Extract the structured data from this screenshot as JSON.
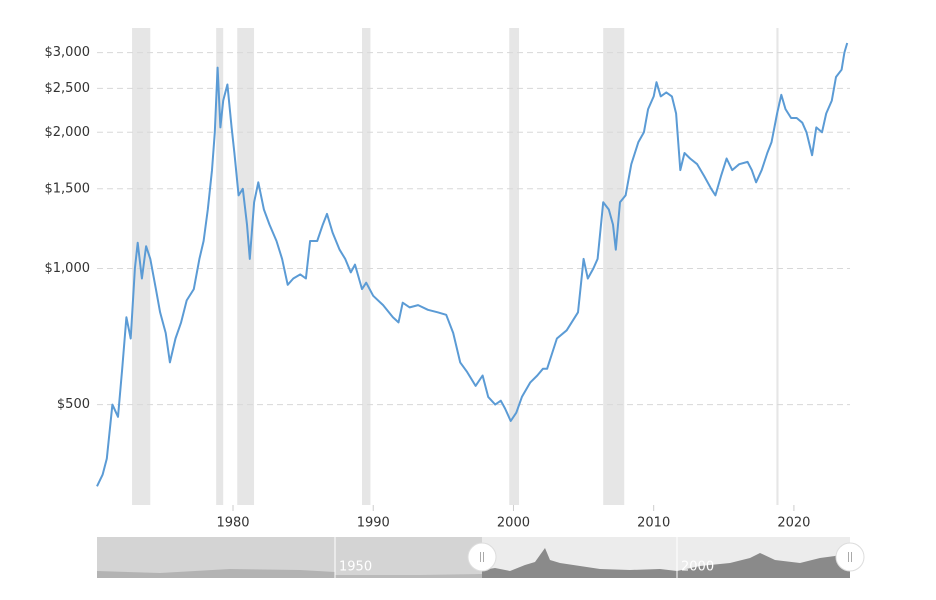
{
  "chart_data": {
    "type": "line",
    "log_scale": true,
    "grid": true,
    "color": "#5b9bd5",
    "recession_color": "#e6e6e6",
    "xlim": [
      1970.3,
      2024.0
    ],
    "ylim": [
      300,
      3400
    ],
    "xticks": [
      1980,
      1990,
      2000,
      2010,
      2020
    ],
    "yticks": [
      {
        "value": 500,
        "label": "$500"
      },
      {
        "value": 1000,
        "label": "$1,000"
      },
      {
        "value": 1500,
        "label": "$1,500"
      },
      {
        "value": 2000,
        "label": "$2,000"
      },
      {
        "value": 2500,
        "label": "$2,500"
      },
      {
        "value": 3000,
        "label": "$3,000"
      }
    ],
    "recessions": [
      [
        1972.8,
        1974.1
      ],
      [
        1978.8,
        1979.3
      ],
      [
        1980.3,
        1981.5
      ],
      [
        1989.2,
        1989.8
      ],
      [
        1999.7,
        2000.4
      ],
      [
        2006.4,
        2007.9
      ],
      [
        2018.75,
        2018.9
      ]
    ],
    "x": [
      1970.3,
      1970.7,
      1971.0,
      1971.4,
      1971.8,
      1972.1,
      1972.4,
      1972.7,
      1973.0,
      1973.2,
      1973.5,
      1973.8,
      1974.1,
      1974.5,
      1974.8,
      1975.2,
      1975.5,
      1975.9,
      1976.3,
      1976.7,
      1977.2,
      1977.6,
      1977.9,
      1978.2,
      1978.5,
      1978.7,
      1978.9,
      1979.1,
      1979.3,
      1979.6,
      1979.9,
      1980.1,
      1980.4,
      1980.7,
      1981.0,
      1981.2,
      1981.5,
      1981.8,
      1982.2,
      1982.6,
      1983.1,
      1983.5,
      1983.9,
      1984.3,
      1984.8,
      1985.2,
      1985.5,
      1986.0,
      1986.4,
      1986.7,
      1987.1,
      1987.6,
      1988.0,
      1988.4,
      1988.7,
      1989.2,
      1989.5,
      1990.0,
      1990.7,
      1991.4,
      1991.8,
      1992.1,
      1992.6,
      1993.2,
      1993.9,
      1994.6,
      1995.2,
      1995.7,
      1996.2,
      1996.7,
      1997.3,
      1997.8,
      1998.2,
      1998.7,
      1999.1,
      1999.4,
      1999.8,
      2000.2,
      2000.6,
      2001.2,
      2001.7,
      2002.1,
      2002.4,
      2003.1,
      2003.8,
      2004.6,
      2005.0,
      2005.3,
      2005.7,
      2006.0,
      2006.4,
      2006.8,
      2007.1,
      2007.3,
      2007.6,
      2008.0,
      2008.4,
      2008.9,
      2009.3,
      2009.6,
      2010.0,
      2010.2,
      2010.5,
      2010.9,
      2011.3,
      2011.6,
      2011.9,
      2012.2,
      2012.6,
      2013.1,
      2013.6,
      2014.1,
      2014.4,
      2014.8,
      2015.2,
      2015.6,
      2016.1,
      2016.7,
      2017.0,
      2017.3,
      2017.7,
      2018.1,
      2018.4,
      2018.8,
      2019.1,
      2019.4,
      2019.8,
      2020.2,
      2020.6,
      2020.9,
      2021.3,
      2021.6,
      2022.0,
      2022.3,
      2022.7,
      2023.0,
      2023.4,
      2023.6,
      2023.8
    ],
    "values": [
      330,
      350,
      380,
      500,
      470,
      600,
      780,
      700,
      1000,
      1140,
      950,
      1120,
      1050,
      900,
      800,
      720,
      620,
      700,
      760,
      850,
      900,
      1050,
      1150,
      1350,
      1650,
      2000,
      2780,
      2050,
      2350,
      2550,
      2050,
      1800,
      1450,
      1500,
      1250,
      1050,
      1400,
      1550,
      1350,
      1250,
      1150,
      1050,
      920,
      950,
      970,
      950,
      1150,
      1150,
      1250,
      1320,
      1200,
      1100,
      1050,
      980,
      1020,
      900,
      930,
      870,
      830,
      780,
      760,
      840,
      820,
      830,
      810,
      800,
      790,
      720,
      620,
      590,
      550,
      580,
      520,
      500,
      510,
      490,
      460,
      480,
      520,
      560,
      580,
      600,
      600,
      700,
      730,
      800,
      1050,
      950,
      1000,
      1050,
      1400,
      1350,
      1250,
      1100,
      1400,
      1450,
      1700,
      1900,
      2000,
      2250,
      2400,
      2580,
      2400,
      2450,
      2400,
      2200,
      1650,
      1800,
      1750,
      1700,
      1600,
      1500,
      1450,
      1600,
      1750,
      1650,
      1700,
      1720,
      1650,
      1550,
      1650,
      1800,
      1900,
      2200,
      2420,
      2250,
      2150,
      2150,
      2100,
      2000,
      1780,
      2050,
      2000,
      2200,
      2350,
      2650,
      2750,
      3000,
      3150
    ]
  },
  "navigator": {
    "labels": [
      "1950",
      "2000"
    ]
  }
}
